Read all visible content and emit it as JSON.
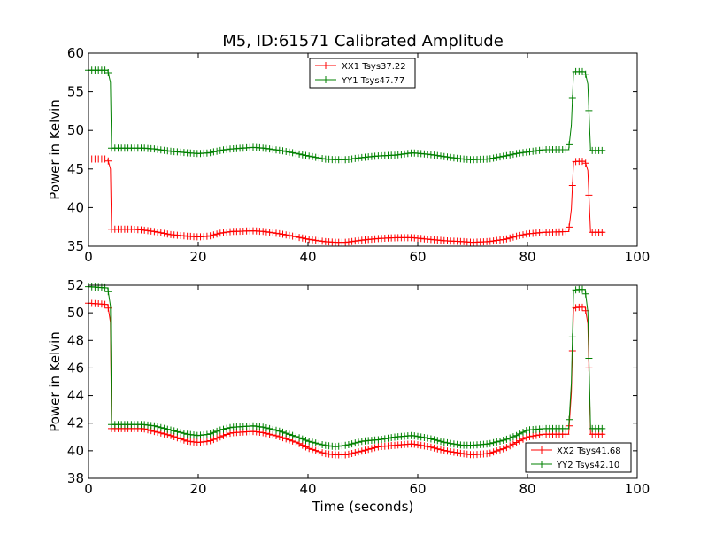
{
  "chart_data": [
    {
      "type": "line",
      "title": "M5, ID:61571 Calibrated Amplitude",
      "xlabel": "",
      "ylabel": "Power in Kelvin",
      "xlim": [
        0,
        100
      ],
      "ylim": [
        35,
        60
      ],
      "xticks": [
        0,
        20,
        40,
        60,
        80,
        100
      ],
      "yticks": [
        35,
        40,
        45,
        50,
        55,
        60
      ],
      "legend": "top-center",
      "grid": false,
      "series": [
        {
          "name": "XX1 Tsys37.22",
          "color": "#ff0000",
          "x": [
            0,
            3.5,
            4,
            4.2,
            6,
            8,
            10,
            12,
            15,
            18,
            20,
            22,
            24,
            26,
            30,
            32,
            35,
            38,
            40,
            43,
            45,
            47,
            50,
            53,
            56,
            59,
            62,
            65,
            68,
            70,
            73,
            76,
            78,
            80,
            83,
            87.5,
            88,
            88.4,
            89,
            90.5,
            91,
            91.5,
            94
          ],
          "y": [
            46.3,
            46.3,
            45.0,
            37.2,
            37.2,
            37.2,
            37.1,
            36.9,
            36.5,
            36.3,
            36.2,
            36.3,
            36.7,
            36.9,
            37.0,
            36.9,
            36.6,
            36.2,
            35.9,
            35.6,
            35.5,
            35.5,
            35.8,
            36.0,
            36.1,
            36.1,
            35.9,
            35.7,
            35.6,
            35.5,
            35.6,
            35.9,
            36.3,
            36.6,
            36.8,
            36.9,
            39.8,
            45.9,
            46.0,
            46.0,
            44.8,
            36.8,
            36.8
          ]
        },
        {
          "name": "YY1 Tsys47.77",
          "color": "#008000",
          "x": [
            0,
            3.5,
            4,
            4.2,
            6,
            8,
            10,
            12,
            15,
            18,
            20,
            22,
            24,
            26,
            30,
            32,
            35,
            38,
            40,
            43,
            45,
            47,
            50,
            53,
            56,
            59,
            62,
            65,
            68,
            70,
            73,
            76,
            78,
            80,
            83,
            87.5,
            88,
            88.4,
            89,
            90.5,
            91,
            91.5,
            94
          ],
          "y": [
            57.8,
            57.8,
            56.2,
            47.7,
            47.7,
            47.7,
            47.7,
            47.6,
            47.3,
            47.1,
            47.0,
            47.1,
            47.4,
            47.6,
            47.8,
            47.7,
            47.4,
            47.0,
            46.7,
            46.3,
            46.2,
            46.2,
            46.5,
            46.7,
            46.8,
            47.1,
            46.9,
            46.6,
            46.3,
            46.2,
            46.3,
            46.7,
            47.0,
            47.2,
            47.5,
            47.5,
            50.7,
            57.6,
            57.6,
            57.6,
            56.0,
            47.4,
            47.4
          ]
        }
      ]
    },
    {
      "type": "line",
      "title": "",
      "xlabel": "Time (seconds)",
      "ylabel": "Power in Kelvin",
      "xlim": [
        0,
        100
      ],
      "ylim": [
        38,
        52
      ],
      "xticks": [
        0,
        20,
        40,
        60,
        80,
        100
      ],
      "yticks": [
        38,
        40,
        42,
        44,
        46,
        48,
        50,
        52
      ],
      "legend": "bottom-right",
      "grid": false,
      "series": [
        {
          "name": "XX2 Tsys41.68",
          "color": "#ff0000",
          "x": [
            0,
            3.5,
            4,
            4.2,
            6,
            8,
            10,
            12,
            15,
            18,
            20,
            22,
            24,
            26,
            30,
            32,
            35,
            38,
            40,
            43,
            45,
            47,
            50,
            53,
            56,
            59,
            62,
            65,
            68,
            70,
            73,
            76,
            78,
            80,
            83,
            87.5,
            88,
            88.4,
            89,
            90.5,
            91,
            91.5,
            94
          ],
          "y": [
            50.7,
            50.6,
            49.3,
            41.6,
            41.6,
            41.6,
            41.6,
            41.4,
            41.1,
            40.7,
            40.6,
            40.7,
            41.0,
            41.3,
            41.4,
            41.3,
            41.0,
            40.6,
            40.2,
            39.8,
            39.7,
            39.7,
            40.0,
            40.3,
            40.4,
            40.5,
            40.3,
            40.0,
            39.8,
            39.7,
            39.8,
            40.2,
            40.6,
            41.0,
            41.2,
            41.2,
            44.2,
            50.3,
            50.4,
            50.4,
            49.2,
            41.2,
            41.2
          ]
        },
        {
          "name": "YY2 Tsys42.10",
          "color": "#008000",
          "x": [
            0,
            3.5,
            4,
            4.2,
            6,
            8,
            10,
            12,
            15,
            18,
            20,
            22,
            24,
            26,
            30,
            32,
            35,
            38,
            40,
            43,
            45,
            47,
            50,
            53,
            56,
            59,
            62,
            65,
            68,
            70,
            73,
            76,
            78,
            80,
            83,
            87.5,
            88,
            88.4,
            89,
            90.5,
            91,
            91.5,
            94
          ],
          "y": [
            51.9,
            51.8,
            50.5,
            41.9,
            41.9,
            41.9,
            41.9,
            41.8,
            41.5,
            41.2,
            41.1,
            41.2,
            41.5,
            41.7,
            41.8,
            41.7,
            41.4,
            41.0,
            40.7,
            40.4,
            40.3,
            40.4,
            40.7,
            40.8,
            41.0,
            41.1,
            40.9,
            40.6,
            40.4,
            40.4,
            40.5,
            40.8,
            41.1,
            41.5,
            41.6,
            41.6,
            44.9,
            51.6,
            51.7,
            51.7,
            50.1,
            41.6,
            41.6
          ]
        }
      ]
    }
  ]
}
